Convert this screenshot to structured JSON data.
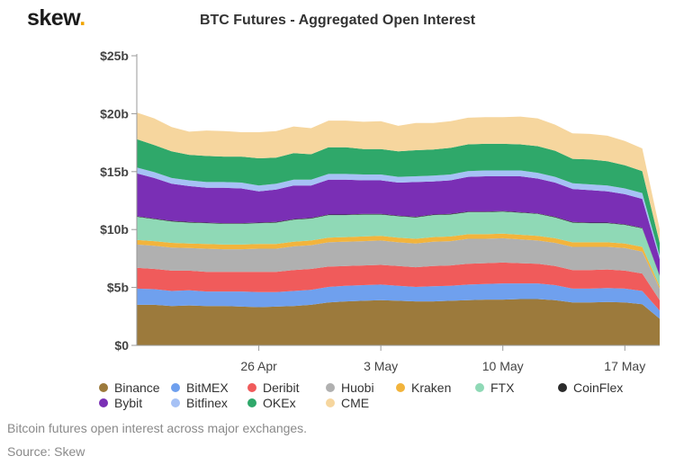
{
  "logo": {
    "text": "skew",
    "dot": "."
  },
  "caption": "Bitcoin futures open interest across major exchanges.",
  "source": "Source: Skew",
  "chart_data": {
    "type": "area",
    "stacked": true,
    "title": "BTC Futures - Aggregated Open Interest",
    "xlabel": "",
    "ylabel": "",
    "ylim": [
      0,
      25
    ],
    "y_tick_labels": [
      "$0",
      "$5b",
      "$10b",
      "$15b",
      "$20b",
      "$25b"
    ],
    "y_tick_values": [
      0,
      5,
      10,
      15,
      20,
      25
    ],
    "x_tick_labels": [
      "26 Apr",
      "3 May",
      "10 May",
      "17 May"
    ],
    "x_tick_dates": [
      "2020-04-26",
      "2020-05-03",
      "2020-05-10",
      "2020-05-17"
    ],
    "x": [
      "2020-04-19",
      "2020-04-20",
      "2020-04-21",
      "2020-04-22",
      "2020-04-23",
      "2020-04-24",
      "2020-04-25",
      "2020-04-26",
      "2020-04-27",
      "2020-04-28",
      "2020-04-29",
      "2020-04-30",
      "2020-05-01",
      "2020-05-02",
      "2020-05-03",
      "2020-05-04",
      "2020-05-05",
      "2020-05-06",
      "2020-05-07",
      "2020-05-08",
      "2020-05-09",
      "2020-05-10",
      "2020-05-11",
      "2020-05-12",
      "2020-05-13",
      "2020-05-14",
      "2020-05-15",
      "2020-05-16",
      "2020-05-17",
      "2020-05-18",
      "2020-05-19"
    ],
    "grid": false,
    "legend_position": "bottom",
    "series": [
      {
        "name": "Binance",
        "color": "#9c7a3c",
        "values": [
          3.5,
          3.5,
          3.4,
          3.45,
          3.4,
          3.4,
          3.35,
          3.3,
          3.35,
          3.4,
          3.5,
          3.7,
          3.8,
          3.85,
          3.9,
          3.85,
          3.8,
          3.8,
          3.85,
          3.9,
          3.95,
          3.95,
          4.0,
          4.0,
          3.9,
          3.7,
          3.7,
          3.75,
          3.7,
          3.55,
          2.3
        ]
      },
      {
        "name": "BitMEX",
        "color": "#6fa0ee",
        "values": [
          1.4,
          1.35,
          1.3,
          1.3,
          1.25,
          1.25,
          1.3,
          1.3,
          1.25,
          1.3,
          1.3,
          1.35,
          1.35,
          1.35,
          1.35,
          1.3,
          1.25,
          1.3,
          1.3,
          1.35,
          1.35,
          1.4,
          1.35,
          1.35,
          1.3,
          1.2,
          1.2,
          1.2,
          1.2,
          1.15,
          0.7
        ]
      },
      {
        "name": "Deribit",
        "color": "#f05b5b",
        "values": [
          1.8,
          1.75,
          1.75,
          1.7,
          1.7,
          1.7,
          1.7,
          1.75,
          1.75,
          1.8,
          1.8,
          1.75,
          1.7,
          1.7,
          1.7,
          1.7,
          1.7,
          1.75,
          1.75,
          1.8,
          1.8,
          1.8,
          1.75,
          1.7,
          1.65,
          1.6,
          1.6,
          1.6,
          1.55,
          1.5,
          0.9
        ]
      },
      {
        "name": "Huobi",
        "color": "#b0b0b0",
        "values": [
          2.0,
          2.0,
          2.0,
          1.95,
          2.0,
          1.95,
          1.95,
          2.0,
          2.0,
          2.05,
          2.05,
          2.1,
          2.1,
          2.1,
          2.1,
          2.05,
          2.05,
          2.1,
          2.1,
          2.15,
          2.1,
          2.1,
          2.05,
          2.0,
          2.0,
          2.0,
          2.0,
          1.95,
          1.95,
          1.9,
          1.0
        ]
      },
      {
        "name": "Kraken",
        "color": "#f2b43c",
        "values": [
          0.4,
          0.4,
          0.4,
          0.4,
          0.4,
          0.4,
          0.4,
          0.4,
          0.4,
          0.4,
          0.4,
          0.4,
          0.4,
          0.4,
          0.4,
          0.4,
          0.4,
          0.4,
          0.4,
          0.4,
          0.4,
          0.4,
          0.4,
          0.4,
          0.4,
          0.4,
          0.4,
          0.4,
          0.4,
          0.4,
          0.2
        ]
      },
      {
        "name": "FTX",
        "color": "#8fd9b6",
        "values": [
          2.0,
          1.9,
          1.85,
          1.8,
          1.8,
          1.8,
          1.8,
          1.8,
          1.85,
          1.9,
          1.9,
          1.95,
          1.9,
          1.9,
          1.85,
          1.85,
          1.85,
          1.9,
          1.9,
          1.9,
          1.9,
          1.9,
          1.9,
          1.9,
          1.8,
          1.7,
          1.65,
          1.65,
          1.6,
          1.6,
          0.9
        ]
      },
      {
        "name": "CoinFlex",
        "color": "#2b2b2b",
        "values": [
          0.05,
          0.05,
          0.05,
          0.05,
          0.05,
          0.05,
          0.05,
          0.05,
          0.05,
          0.05,
          0.05,
          0.05,
          0.05,
          0.05,
          0.05,
          0.05,
          0.05,
          0.05,
          0.05,
          0.05,
          0.05,
          0.05,
          0.05,
          0.05,
          0.05,
          0.05,
          0.05,
          0.05,
          0.05,
          0.05,
          0.05
        ]
      },
      {
        "name": "Bybit",
        "color": "#7a2fb5",
        "values": [
          3.7,
          3.5,
          3.2,
          3.1,
          3.0,
          3.05,
          3.0,
          2.7,
          2.8,
          2.9,
          2.8,
          3.0,
          3.0,
          2.9,
          2.9,
          2.85,
          3.0,
          2.85,
          2.9,
          3.0,
          3.05,
          3.0,
          3.1,
          3.0,
          2.95,
          2.85,
          2.8,
          2.7,
          2.6,
          2.5,
          1.4
        ]
      },
      {
        "name": "Bitfinex",
        "color": "#a6c1f5",
        "values": [
          0.5,
          0.5,
          0.5,
          0.5,
          0.5,
          0.5,
          0.5,
          0.5,
          0.5,
          0.5,
          0.5,
          0.5,
          0.5,
          0.5,
          0.5,
          0.5,
          0.5,
          0.5,
          0.5,
          0.5,
          0.5,
          0.5,
          0.5,
          0.5,
          0.5,
          0.5,
          0.5,
          0.5,
          0.5,
          0.5,
          0.3
        ]
      },
      {
        "name": "OKEx",
        "color": "#2fa86a",
        "values": [
          2.45,
          2.35,
          2.3,
          2.2,
          2.25,
          2.2,
          2.25,
          2.35,
          2.25,
          2.3,
          2.2,
          2.3,
          2.3,
          2.2,
          2.2,
          2.2,
          2.25,
          2.25,
          2.3,
          2.3,
          2.3,
          2.3,
          2.25,
          2.3,
          2.25,
          2.1,
          2.15,
          2.1,
          2.0,
          1.9,
          1.1
        ]
      },
      {
        "name": "CME",
        "color": "#f6d69e",
        "values": [
          2.3,
          2.3,
          2.1,
          2.0,
          2.2,
          2.2,
          2.1,
          2.25,
          2.3,
          2.3,
          2.25,
          2.3,
          2.3,
          2.35,
          2.4,
          2.2,
          2.35,
          2.3,
          2.3,
          2.3,
          2.3,
          2.3,
          2.4,
          2.4,
          2.25,
          2.2,
          2.2,
          2.2,
          2.1,
          1.95,
          1.2
        ]
      }
    ]
  }
}
